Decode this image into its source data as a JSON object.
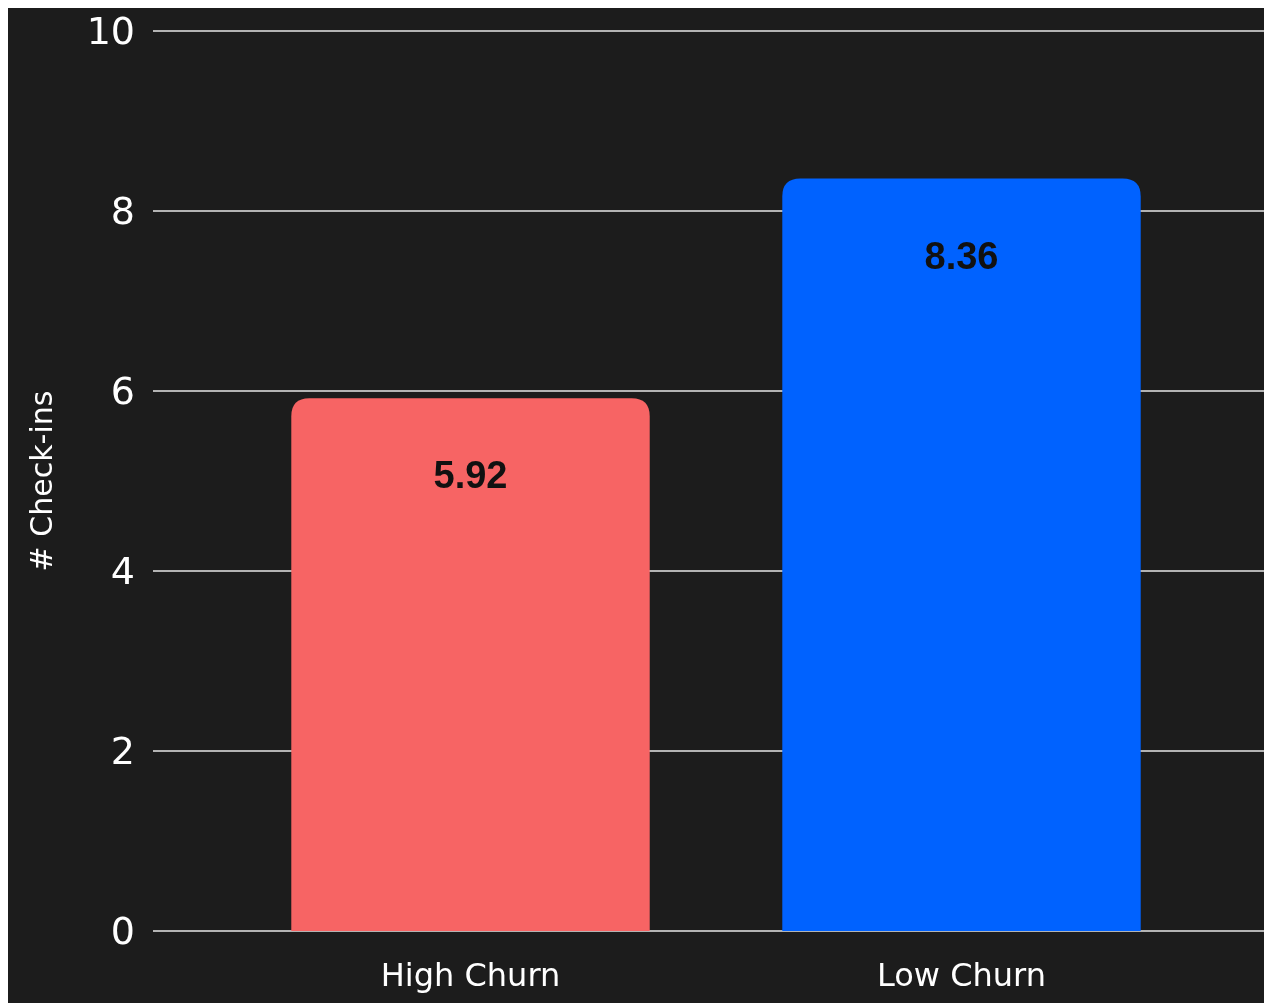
{
  "chart_data": {
    "type": "bar",
    "ylabel": "# Check-ins",
    "categories": [
      "High Churn",
      "Low Churn"
    ],
    "values": [
      5.92,
      8.36
    ],
    "colors": [
      "#f76464",
      "#0062ff"
    ],
    "ylim": [
      0,
      10
    ],
    "yticks": [
      0,
      2,
      4,
      6,
      8,
      10
    ],
    "grid": "y",
    "data_labels": true
  }
}
